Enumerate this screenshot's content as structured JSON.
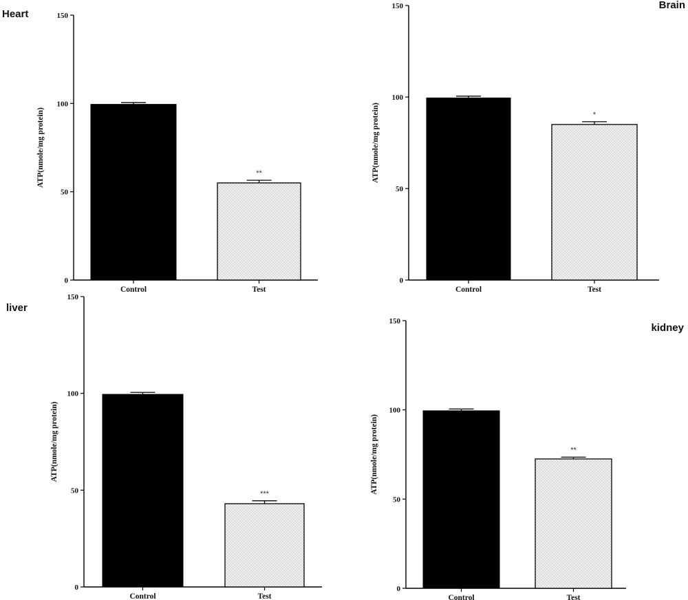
{
  "colors": {
    "control_fill": "#000000",
    "test_fill": "#f2f2f2",
    "test_dots": "#9a9a9a",
    "axis": "#000000"
  },
  "chart_data": [
    {
      "type": "bar",
      "title": "Heart",
      "categories": [
        "Control",
        "Test"
      ],
      "values": [
        99.5,
        55
      ],
      "error": [
        1,
        1.5
      ],
      "significance": [
        "",
        "**"
      ],
      "ylabel": "ATP(nmole/mg protein)",
      "ylim": [
        0,
        150
      ],
      "yticks": [
        0,
        50,
        100,
        150
      ],
      "legend": "none",
      "grid": false
    },
    {
      "type": "bar",
      "title": "Brain",
      "categories": [
        "Control",
        "Test"
      ],
      "values": [
        99.5,
        85
      ],
      "error": [
        1,
        1.5
      ],
      "significance": [
        "",
        "*"
      ],
      "ylabel": "ATP(nmole/mg protein)",
      "ylim": [
        0,
        150
      ],
      "yticks": [
        0,
        50,
        100,
        150
      ],
      "legend": "none",
      "grid": false
    },
    {
      "type": "bar",
      "title": "liver",
      "categories": [
        "Control",
        "Test"
      ],
      "values": [
        99.5,
        43
      ],
      "error": [
        1,
        1.5
      ],
      "significance": [
        "",
        "***"
      ],
      "ylabel": "ATP(nmole/mg protein)",
      "ylim": [
        0,
        150
      ],
      "yticks": [
        0,
        50,
        100,
        150
      ],
      "legend": "none",
      "grid": false
    },
    {
      "type": "bar",
      "title": "kidney",
      "categories": [
        "Control",
        "Test"
      ],
      "values": [
        99.5,
        72.5
      ],
      "error": [
        1,
        1
      ],
      "significance": [
        "",
        "**"
      ],
      "ylabel": "ATP(nmole/mg protein)",
      "ylim": [
        0,
        150
      ],
      "yticks": [
        0,
        50,
        100,
        150
      ],
      "legend": "none",
      "grid": false
    }
  ]
}
